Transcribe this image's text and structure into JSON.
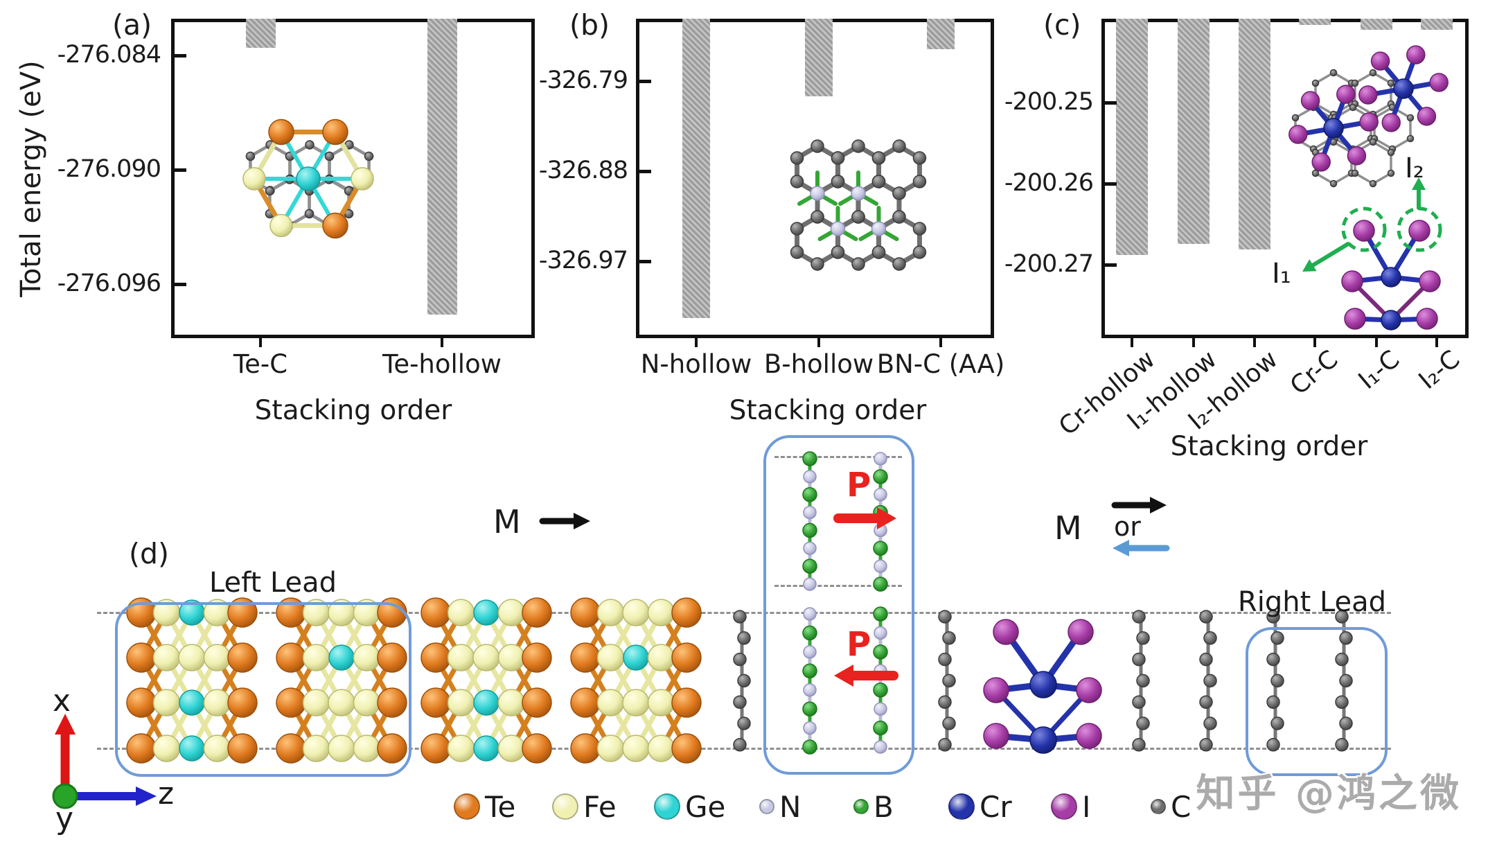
{
  "panels": {
    "a": "(a)",
    "b": "(b)",
    "c": "(c)",
    "d": "(d)"
  },
  "axis": {
    "y_label": "Total energy (eV)",
    "x_label": "Stacking order"
  },
  "chart_data": [
    {
      "id": "a",
      "type": "bar",
      "title": "",
      "ylabel": "Total energy (eV)",
      "xlabel": "Stacking order",
      "categories": [
        "Te-C",
        "Te-hollow"
      ],
      "values": [
        -276.0836,
        -276.0976
      ],
      "yticks": [
        -276.084,
        -276.09,
        -276.096
      ],
      "ytick_labels": [
        "-276.084",
        "-276.090",
        "-276.096"
      ],
      "ylim": [
        -276.0988,
        -276.0821
      ],
      "bar_style": "gray-hatched",
      "grid": false,
      "legend_position": "none"
    },
    {
      "id": "b",
      "type": "bar",
      "title": "",
      "ylabel": "",
      "xlabel": "Stacking order",
      "categories": [
        "N-hollow",
        "B-hollow",
        "BN-C (AA)"
      ],
      "values": [
        -327.027,
        -326.805,
        -326.758
      ],
      "yticks": [
        -326.79,
        -326.88,
        -326.97
      ],
      "ytick_labels": [
        "-326.79",
        "-326.88",
        "-326.97"
      ],
      "ylim": [
        -327.047,
        -326.728
      ],
      "bar_style": "gray-hatched",
      "grid": false,
      "legend_position": "none"
    },
    {
      "id": "c",
      "type": "bar",
      "title": "",
      "ylabel": "",
      "xlabel": "Stacking order",
      "categories": [
        "Cr-hollow",
        "I₁-hollow",
        "I₂-hollow",
        "Cr-C",
        "I₁-C",
        "I₂-C"
      ],
      "values": [
        -200.2688,
        -200.2674,
        -200.2681,
        -200.2402,
        -200.241,
        -200.241
      ],
      "yticks": [
        -200.25,
        -200.26,
        -200.27
      ],
      "ytick_labels": [
        "-200.25",
        "-200.26",
        "-200.27"
      ],
      "ylim": [
        -200.2791,
        -200.2397
      ],
      "bar_style": "gray-hatched",
      "grid": false,
      "legend_position": "none"
    }
  ],
  "device": {
    "left_lead": "Left Lead",
    "right_lead": "Right Lead",
    "magnetization": "M",
    "or_text": "or",
    "polarization_top": "P",
    "polarization_bottom": "P",
    "iodine_site_1": "I₁",
    "iodine_site_2": "I₂",
    "axes": {
      "x": "x",
      "y": "y",
      "z": "z"
    }
  },
  "legend": {
    "items": [
      {
        "label": "Te",
        "color": "#e07a1f",
        "size": "large"
      },
      {
        "label": "Fe",
        "color": "#f0f0b2",
        "size": "large"
      },
      {
        "label": "Ge",
        "color": "#2fd3d3",
        "size": "large"
      },
      {
        "label": "N",
        "color": "#c9c9e4",
        "size": "small"
      },
      {
        "label": "B",
        "color": "#35a535",
        "size": "small"
      },
      {
        "label": "Cr",
        "color": "#2433aa",
        "size": "large"
      },
      {
        "label": "I",
        "color": "#a63ca6",
        "size": "large"
      },
      {
        "label": "C",
        "color": "#6e6e6e",
        "size": "small"
      }
    ]
  },
  "watermark": "知乎 @鸿之微",
  "colors": {
    "bar_fill": "#9d9d9d",
    "bar_hatch_light": "#c7c7c7",
    "frame": "#111111",
    "lead_box_blue": "#6f9bd8",
    "dashed_gray": "#8f8f8f",
    "arrow_black": "#111111",
    "arrow_blue": "#5b9bd5",
    "arrow_red": "#e8231f",
    "arrow_green": "#1fae50",
    "axis_x_red": "#dd1515",
    "axis_z_blue": "#2323cc",
    "axis_origin_green": "#28a428"
  }
}
